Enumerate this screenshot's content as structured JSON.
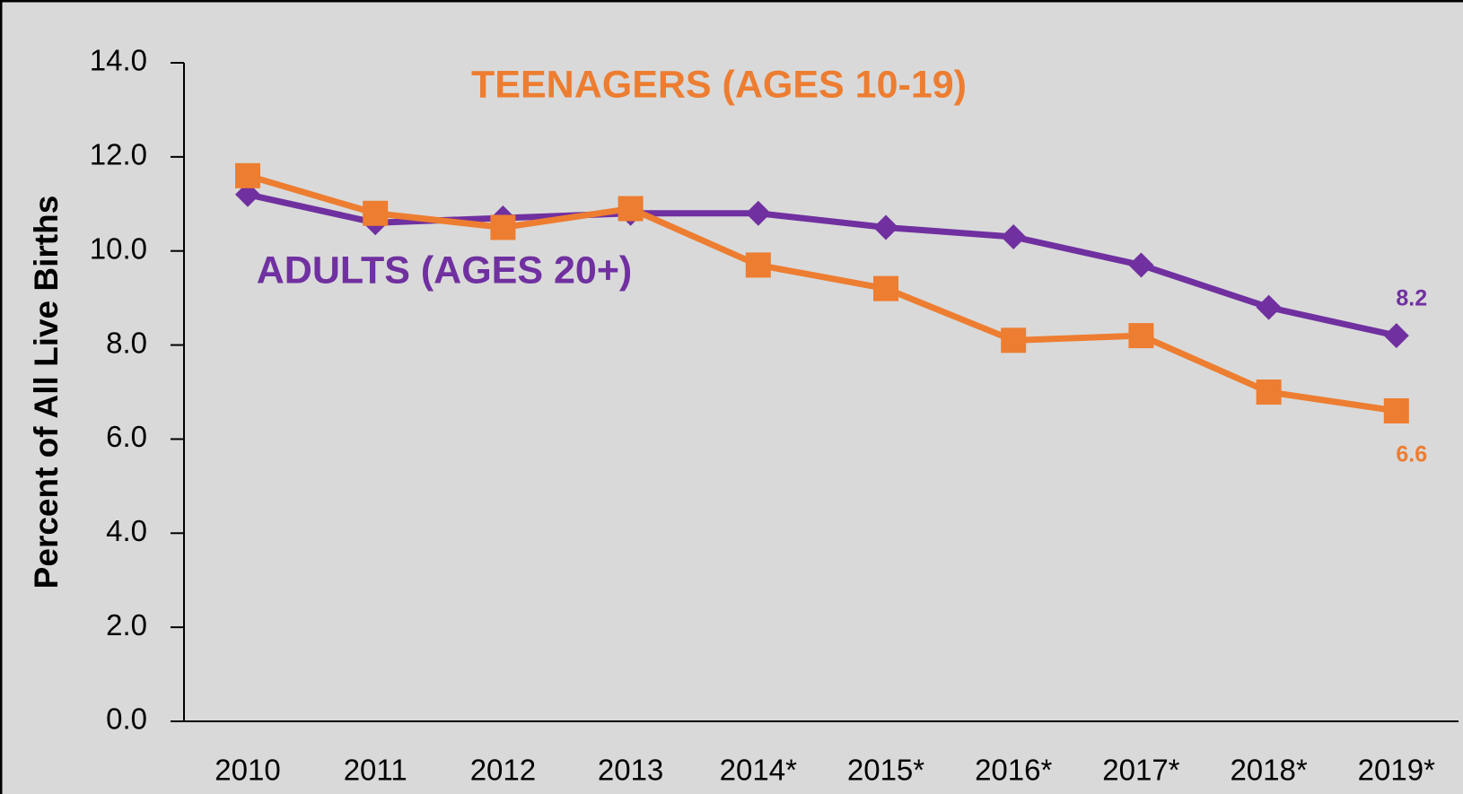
{
  "chart_data": {
    "type": "line",
    "ylabel": "Percent of All Live Births",
    "categories": [
      "2010",
      "2011",
      "2012",
      "2013",
      "2014*",
      "2015*",
      "2016*",
      "2017*",
      "2018*",
      "2019*"
    ],
    "series": [
      {
        "name": "ADULTS (AGES 20+)",
        "color": "#7030a0",
        "marker": "diamond",
        "values": [
          11.2,
          10.6,
          10.7,
          10.8,
          10.8,
          10.5,
          10.3,
          9.7,
          8.8,
          8.2
        ]
      },
      {
        "name": "TEENAGERS (AGES 10-19)",
        "color": "#ed7d31",
        "marker": "square",
        "values": [
          11.6,
          10.8,
          10.5,
          10.9,
          9.7,
          9.2,
          8.1,
          8.2,
          7.0,
          6.6
        ]
      }
    ],
    "ylim": [
      0,
      14
    ],
    "yticks": [
      {
        "value": 0,
        "label": "0.0"
      },
      {
        "value": 2,
        "label": "2.0"
      },
      {
        "value": 4,
        "label": "4.0"
      },
      {
        "value": 6,
        "label": "6.0"
      },
      {
        "value": 8,
        "label": "8.0"
      },
      {
        "value": 10,
        "label": "10.0"
      },
      {
        "value": 12,
        "label": "12.0"
      },
      {
        "value": 14,
        "label": "14.0"
      }
    ],
    "grid": false
  }
}
